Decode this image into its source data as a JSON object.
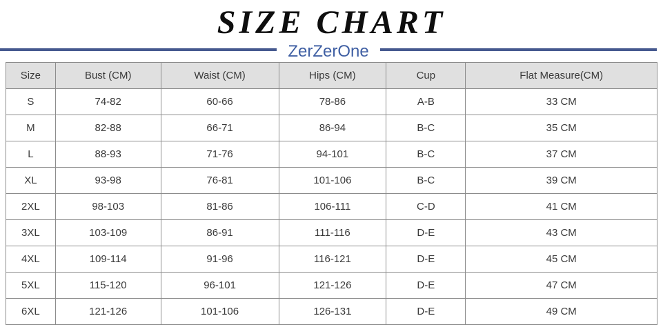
{
  "header": {
    "title": "SIZE CHART",
    "brand": "ZerZerOne"
  },
  "colors": {
    "title_text": "#0e0e0e",
    "divider_rule": "#46598f",
    "brand_text": "#3f5fa3",
    "table_header_bg": "#e0e0e0",
    "table_border": "#8c8c8c",
    "table_text": "#3a3a3a"
  },
  "table": {
    "columns": [
      "Size",
      "Bust (CM)",
      "Waist (CM)",
      "Hips (CM)",
      "Cup",
      "Flat Measure(CM)"
    ],
    "column_widths_pct": [
      7.6,
      16.2,
      18.1,
      16.5,
      12.2,
      29.4
    ],
    "rows": [
      [
        "S",
        "74-82",
        "60-66",
        "78-86",
        "A-B",
        "33 CM"
      ],
      [
        "M",
        "82-88",
        "66-71",
        "86-94",
        "B-C",
        "35 CM"
      ],
      [
        "L",
        "88-93",
        "71-76",
        "94-101",
        "B-C",
        "37 CM"
      ],
      [
        "XL",
        "93-98",
        "76-81",
        "101-106",
        "B-C",
        "39 CM"
      ],
      [
        "2XL",
        "98-103",
        "81-86",
        "106-111",
        "C-D",
        "41 CM"
      ],
      [
        "3XL",
        "103-109",
        "86-91",
        "111-116",
        "D-E",
        "43 CM"
      ],
      [
        "4XL",
        "109-114",
        "91-96",
        "116-121",
        "D-E",
        "45 CM"
      ],
      [
        "5XL",
        "115-120",
        "96-101",
        "121-126",
        "D-E",
        "47 CM"
      ],
      [
        "6XL",
        "121-126",
        "101-106",
        "126-131",
        "D-E",
        "49 CM"
      ]
    ]
  }
}
